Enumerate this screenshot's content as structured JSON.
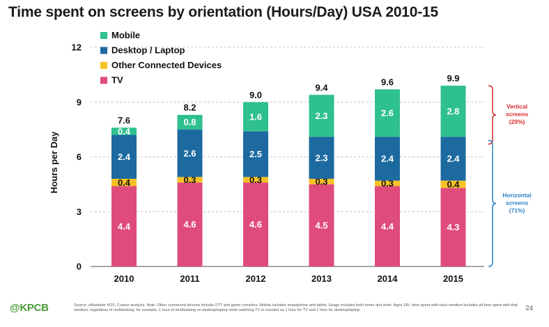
{
  "title": "Time spent on screens by orientation (Hours/Day) USA 2010-15",
  "chart_data": {
    "type": "bar",
    "stacked": true,
    "title": "Time spent on screens by orientation (Hours/Day) USA 2010-15",
    "xlabel": "",
    "ylabel": "Hours per Day",
    "ylim": [
      0,
      12
    ],
    "yticks": [
      "0",
      "3",
      "6",
      "9",
      "12"
    ],
    "grid": "horizontal dashed",
    "legend_position": "top-left",
    "categories": [
      "2010",
      "2011",
      "2012",
      "2013",
      "2014",
      "2015"
    ],
    "totals": [
      "7.6",
      "8.2",
      "9.0",
      "9.4",
      "9.6",
      "9.9"
    ],
    "series": [
      {
        "name": "TV",
        "color": "#df4c7c",
        "label_color": "#ffffff",
        "values": [
          4.4,
          4.6,
          4.6,
          4.5,
          4.4,
          4.3
        ],
        "labels": [
          "4.4",
          "4.6",
          "4.6",
          "4.5",
          "4.4",
          "4.3"
        ]
      },
      {
        "name": "Other Connected Devices",
        "color": "#f7c226",
        "label_color": "#111111",
        "values": [
          0.4,
          0.3,
          0.3,
          0.3,
          0.3,
          0.4
        ],
        "labels": [
          "0.4",
          "0.3",
          "0.3",
          "0.3",
          "0.3",
          "0.4"
        ]
      },
      {
        "name": "Desktop / Laptop",
        "color": "#1d6aa0",
        "label_color": "#ffffff",
        "values": [
          2.4,
          2.6,
          2.5,
          2.3,
          2.4,
          2.4
        ],
        "labels": [
          "2.4",
          "2.6",
          "2.5",
          "2.3",
          "2.4",
          "2.4"
        ]
      },
      {
        "name": "Mobile",
        "color": "#2fc08f",
        "label_color": "#ffffff",
        "values": [
          0.4,
          0.8,
          1.6,
          2.3,
          2.6,
          2.8
        ],
        "labels": [
          "0.4",
          "0.8",
          "1.6",
          "2.3",
          "2.6",
          "2.8"
        ]
      }
    ],
    "legend_order": [
      "Mobile",
      "Desktop / Laptop",
      "Other Connected Devices",
      "TV"
    ],
    "annotations": [
      {
        "lines": [
          "Vertical",
          "screens",
          "(29%)"
        ],
        "color": "#d42a2a",
        "range": [
          6.7,
          9.9
        ]
      },
      {
        "lines": [
          "Horizontal",
          "screens",
          "(71%)"
        ],
        "color": "#2c7fc1",
        "range": [
          0,
          6.9
        ]
      }
    ]
  },
  "footer": {
    "logo": "@KPCB",
    "source": "Source: eMarketer 4/15, Coatue analysis. Note: Other connected devices include OTT and game consoles. Mobile includes smartphone and tablet. Usage includes both home and work. Ages 18+; time spent with each medium includes all time spent with that medium, regardless of multitasking; for example, 1 hour of multitasking on desktop/laptop while watching TV is counted as 1 hour for TV and 1 hour for desktop/laptop.",
    "page": "24"
  }
}
